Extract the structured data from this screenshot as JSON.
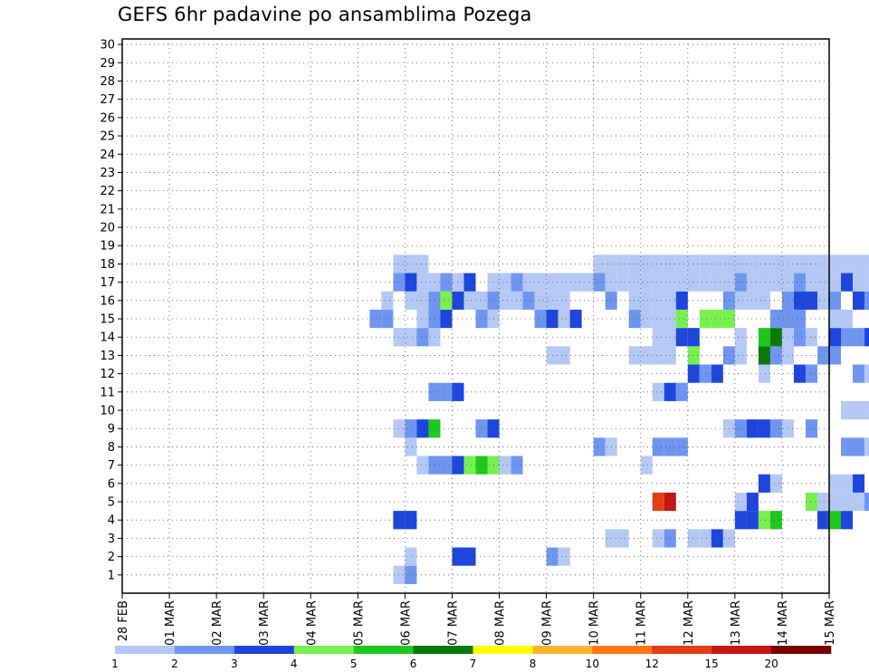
{
  "chart_data": {
    "type": "heatmap",
    "title": "GEFS 6hr padavine po ansamblima Pozega",
    "xlabel": "",
    "ylabel": "",
    "y_members": [
      "1",
      "2",
      "3",
      "4",
      "5",
      "6",
      "7",
      "8",
      "9",
      "10",
      "11",
      "12",
      "13",
      "14",
      "15",
      "16",
      "17",
      "18",
      "19",
      "20",
      "21",
      "22",
      "23",
      "24",
      "25",
      "26",
      "27",
      "28",
      "29",
      "30"
    ],
    "x_tick_labels": [
      "28 FEB",
      "01 MAR",
      "02 MAR",
      "03 MAR",
      "04 MAR",
      "05 MAR",
      "06 MAR",
      "07 MAR",
      "08 MAR",
      "09 MAR",
      "10 MAR",
      "11 MAR",
      "12 MAR",
      "13 MAR",
      "14 MAR",
      "15 MAR"
    ],
    "x_step_hours": 6,
    "x_range_days": [
      0,
      15
    ],
    "grid": true,
    "legend": {
      "position": "bottom",
      "labels": [
        "1",
        "2",
        "3",
        "4",
        "5",
        "6",
        "7",
        "8",
        "10",
        "12",
        "15",
        "20"
      ],
      "colors": [
        "#b4c8f5",
        "#6e96f0",
        "#1e46dc",
        "#78f050",
        "#1ec81e",
        "#0a780a",
        "#ffff00",
        "#ffb432",
        "#ff7814",
        "#e63c14",
        "#c81414",
        "#780000"
      ]
    },
    "cells": [
      [
        23,
        1,
        0
      ],
      [
        24,
        1,
        1
      ],
      [
        24,
        2,
        0
      ],
      [
        28,
        2,
        2
      ],
      [
        29,
        2,
        2
      ],
      [
        36,
        2,
        1
      ],
      [
        37,
        2,
        0
      ],
      [
        41,
        3,
        0
      ],
      [
        42,
        3,
        0
      ],
      [
        45,
        3,
        0
      ],
      [
        46,
        3,
        1
      ],
      [
        48,
        3,
        0
      ],
      [
        49,
        3,
        0
      ],
      [
        50,
        3,
        2
      ],
      [
        51,
        3,
        0
      ],
      [
        23,
        4,
        2
      ],
      [
        24,
        4,
        2
      ],
      [
        52,
        4,
        2
      ],
      [
        53,
        4,
        2
      ],
      [
        54,
        4,
        3
      ],
      [
        55,
        4,
        4
      ],
      [
        59,
        4,
        2
      ],
      [
        60,
        4,
        4
      ],
      [
        61,
        4,
        2
      ],
      [
        45,
        5,
        9
      ],
      [
        46,
        5,
        10
      ],
      [
        52,
        5,
        0
      ],
      [
        53,
        5,
        2
      ],
      [
        58,
        5,
        3
      ],
      [
        59,
        5,
        0
      ],
      [
        60,
        5,
        0
      ],
      [
        61,
        5,
        0
      ],
      [
        62,
        5,
        0
      ],
      [
        63,
        5,
        1
      ],
      [
        64,
        5,
        0
      ],
      [
        65,
        5,
        2
      ],
      [
        54,
        6,
        2
      ],
      [
        55,
        6,
        0
      ],
      [
        60,
        6,
        0
      ],
      [
        61,
        6,
        0
      ],
      [
        62,
        6,
        2
      ],
      [
        25,
        7,
        0
      ],
      [
        26,
        7,
        1
      ],
      [
        27,
        7,
        1
      ],
      [
        28,
        7,
        2
      ],
      [
        29,
        7,
        3
      ],
      [
        30,
        7,
        4
      ],
      [
        31,
        7,
        3
      ],
      [
        32,
        7,
        0
      ],
      [
        33,
        7,
        1
      ],
      [
        44,
        7,
        0
      ],
      [
        24,
        8,
        0
      ],
      [
        40,
        8,
        1
      ],
      [
        41,
        8,
        0
      ],
      [
        45,
        8,
        1
      ],
      [
        46,
        8,
        1
      ],
      [
        47,
        8,
        1
      ],
      [
        61,
        8,
        1
      ],
      [
        62,
        8,
        1
      ],
      [
        63,
        8,
        0
      ],
      [
        68,
        8,
        0
      ],
      [
        23,
        9,
        0
      ],
      [
        24,
        9,
        1
      ],
      [
        25,
        9,
        2
      ],
      [
        26,
        9,
        4
      ],
      [
        30,
        9,
        1
      ],
      [
        31,
        9,
        2
      ],
      [
        51,
        9,
        0
      ],
      [
        52,
        9,
        1
      ],
      [
        53,
        9,
        2
      ],
      [
        54,
        9,
        2
      ],
      [
        55,
        9,
        1
      ],
      [
        56,
        9,
        0
      ],
      [
        58,
        9,
        1
      ],
      [
        61,
        10,
        0
      ],
      [
        62,
        10,
        0
      ],
      [
        63,
        10,
        0
      ],
      [
        64,
        10,
        0
      ],
      [
        67,
        10,
        0
      ],
      [
        68,
        10,
        0
      ],
      [
        69,
        10,
        0
      ],
      [
        70,
        10,
        0
      ],
      [
        71,
        10,
        0
      ],
      [
        26,
        11,
        1
      ],
      [
        27,
        11,
        1
      ],
      [
        28,
        11,
        2
      ],
      [
        45,
        11,
        0
      ],
      [
        46,
        11,
        2
      ],
      [
        47,
        11,
        1
      ],
      [
        48,
        12,
        2
      ],
      [
        49,
        12,
        1
      ],
      [
        50,
        12,
        2
      ],
      [
        54,
        12,
        0
      ],
      [
        57,
        12,
        2
      ],
      [
        58,
        12,
        1
      ],
      [
        62,
        12,
        1
      ],
      [
        63,
        12,
        0
      ],
      [
        66,
        12,
        1
      ],
      [
        67,
        12,
        0
      ],
      [
        36,
        13,
        0
      ],
      [
        37,
        13,
        0
      ],
      [
        43,
        13,
        0
      ],
      [
        44,
        13,
        0
      ],
      [
        45,
        13,
        0
      ],
      [
        46,
        13,
        0
      ],
      [
        48,
        13,
        3
      ],
      [
        51,
        13,
        1
      ],
      [
        52,
        13,
        0
      ],
      [
        54,
        13,
        5
      ],
      [
        55,
        13,
        1
      ],
      [
        56,
        13,
        0
      ],
      [
        59,
        13,
        1
      ],
      [
        60,
        13,
        1
      ],
      [
        23,
        14,
        0
      ],
      [
        24,
        14,
        0
      ],
      [
        25,
        14,
        1
      ],
      [
        26,
        14,
        0
      ],
      [
        45,
        14,
        0
      ],
      [
        46,
        14,
        0
      ],
      [
        47,
        14,
        2
      ],
      [
        48,
        14,
        2
      ],
      [
        52,
        14,
        0
      ],
      [
        54,
        14,
        4
      ],
      [
        55,
        14,
        5
      ],
      [
        56,
        14,
        0
      ],
      [
        57,
        14,
        1
      ],
      [
        58,
        14,
        0
      ],
      [
        60,
        14,
        2
      ],
      [
        61,
        14,
        1
      ],
      [
        62,
        14,
        1
      ],
      [
        63,
        14,
        2
      ],
      [
        65,
        14,
        0
      ],
      [
        66,
        14,
        1
      ],
      [
        67,
        14,
        1
      ],
      [
        68,
        14,
        1
      ],
      [
        69,
        14,
        0
      ],
      [
        21,
        15,
        1
      ],
      [
        22,
        15,
        1
      ],
      [
        25,
        15,
        0
      ],
      [
        26,
        15,
        1
      ],
      [
        27,
        15,
        2
      ],
      [
        30,
        15,
        1
      ],
      [
        31,
        15,
        0
      ],
      [
        35,
        15,
        1
      ],
      [
        36,
        15,
        2
      ],
      [
        37,
        15,
        0
      ],
      [
        38,
        15,
        2
      ],
      [
        43,
        15,
        1
      ],
      [
        44,
        15,
        0
      ],
      [
        45,
        15,
        0
      ],
      [
        46,
        15,
        0
      ],
      [
        47,
        15,
        3
      ],
      [
        49,
        15,
        3
      ],
      [
        50,
        15,
        3
      ],
      [
        51,
        15,
        3
      ],
      [
        55,
        15,
        1
      ],
      [
        56,
        15,
        1
      ],
      [
        57,
        15,
        1
      ],
      [
        60,
        15,
        0
      ],
      [
        61,
        15,
        0
      ],
      [
        64,
        15,
        0
      ],
      [
        65,
        15,
        0
      ],
      [
        66,
        15,
        0
      ],
      [
        67,
        15,
        2
      ],
      [
        68,
        15,
        0
      ],
      [
        22,
        16,
        0
      ],
      [
        24,
        16,
        0
      ],
      [
        25,
        16,
        0
      ],
      [
        26,
        16,
        1
      ],
      [
        27,
        16,
        3
      ],
      [
        28,
        16,
        2
      ],
      [
        29,
        16,
        0
      ],
      [
        30,
        16,
        0
      ],
      [
        31,
        16,
        1
      ],
      [
        32,
        16,
        0
      ],
      [
        33,
        16,
        0
      ],
      [
        34,
        16,
        1
      ],
      [
        35,
        16,
        0
      ],
      [
        36,
        16,
        0
      ],
      [
        37,
        16,
        0
      ],
      [
        41,
        16,
        1
      ],
      [
        43,
        16,
        0
      ],
      [
        44,
        16,
        0
      ],
      [
        45,
        16,
        0
      ],
      [
        46,
        16,
        0
      ],
      [
        47,
        16,
        2
      ],
      [
        51,
        16,
        1
      ],
      [
        52,
        16,
        0
      ],
      [
        53,
        16,
        0
      ],
      [
        54,
        16,
        0
      ],
      [
        56,
        16,
        1
      ],
      [
        57,
        16,
        2
      ],
      [
        58,
        16,
        2
      ],
      [
        59,
        16,
        0
      ],
      [
        60,
        16,
        1
      ],
      [
        62,
        16,
        2
      ],
      [
        63,
        16,
        1
      ],
      [
        64,
        16,
        0
      ],
      [
        65,
        16,
        0
      ],
      [
        66,
        16,
        0
      ],
      [
        67,
        16,
        1
      ],
      [
        68,
        16,
        0
      ],
      [
        69,
        16,
        3
      ],
      [
        70,
        16,
        0
      ],
      [
        71,
        16,
        0
      ],
      [
        72,
        16,
        0
      ],
      [
        73,
        16,
        0
      ],
      [
        23,
        17,
        1
      ],
      [
        24,
        17,
        2
      ],
      [
        25,
        17,
        0
      ],
      [
        26,
        17,
        0
      ],
      [
        27,
        17,
        1
      ],
      [
        28,
        17,
        0
      ],
      [
        29,
        17,
        2
      ],
      [
        31,
        17,
        0
      ],
      [
        32,
        17,
        0
      ],
      [
        33,
        17,
        1
      ],
      [
        34,
        17,
        0
      ],
      [
        35,
        17,
        0
      ],
      [
        36,
        17,
        0
      ],
      [
        37,
        17,
        0
      ],
      [
        38,
        17,
        0
      ],
      [
        39,
        17,
        0
      ],
      [
        40,
        17,
        1
      ],
      [
        41,
        17,
        0
      ],
      [
        42,
        17,
        0
      ],
      [
        43,
        17,
        0
      ],
      [
        44,
        17,
        0
      ],
      [
        45,
        17,
        0
      ],
      [
        46,
        17,
        0
      ],
      [
        47,
        17,
        0
      ],
      [
        48,
        17,
        0
      ],
      [
        49,
        17,
        0
      ],
      [
        50,
        17,
        0
      ],
      [
        51,
        17,
        0
      ],
      [
        52,
        17,
        1
      ],
      [
        53,
        17,
        0
      ],
      [
        54,
        17,
        0
      ],
      [
        55,
        17,
        0
      ],
      [
        56,
        17,
        0
      ],
      [
        57,
        17,
        1
      ],
      [
        58,
        17,
        0
      ],
      [
        59,
        17,
        0
      ],
      [
        60,
        17,
        0
      ],
      [
        61,
        17,
        2
      ],
      [
        62,
        17,
        0
      ],
      [
        63,
        17,
        0
      ],
      [
        64,
        17,
        0
      ],
      [
        65,
        17,
        1
      ],
      [
        66,
        17,
        0
      ],
      [
        67,
        17,
        0
      ],
      [
        68,
        17,
        0
      ],
      [
        69,
        17,
        0
      ],
      [
        70,
        17,
        0
      ],
      [
        71,
        17,
        0
      ],
      [
        23,
        18,
        0
      ],
      [
        24,
        18,
        0
      ],
      [
        25,
        18,
        0
      ],
      [
        40,
        18,
        0
      ],
      [
        41,
        18,
        0
      ],
      [
        42,
        18,
        0
      ],
      [
        43,
        18,
        0
      ],
      [
        44,
        18,
        0
      ],
      [
        45,
        18,
        0
      ],
      [
        46,
        18,
        0
      ],
      [
        47,
        18,
        0
      ],
      [
        48,
        18,
        0
      ],
      [
        49,
        18,
        0
      ],
      [
        50,
        18,
        0
      ],
      [
        51,
        18,
        0
      ],
      [
        52,
        18,
        0
      ],
      [
        53,
        18,
        0
      ],
      [
        54,
        18,
        0
      ],
      [
        55,
        18,
        0
      ],
      [
        56,
        18,
        0
      ],
      [
        57,
        18,
        0
      ],
      [
        58,
        18,
        0
      ],
      [
        59,
        18,
        0
      ],
      [
        60,
        18,
        0
      ],
      [
        61,
        18,
        0
      ],
      [
        62,
        18,
        0
      ],
      [
        63,
        18,
        0
      ],
      [
        64,
        18,
        0
      ],
      [
        65,
        18,
        0
      ],
      [
        66,
        18,
        0
      ],
      [
        67,
        18,
        0
      ],
      [
        68,
        18,
        0
      ],
      [
        69,
        18,
        0
      ],
      [
        70,
        18,
        0
      ],
      [
        71,
        18,
        0
      ],
      [
        72,
        18,
        0
      ],
      [
        73,
        18,
        0
      ]
    ]
  }
}
